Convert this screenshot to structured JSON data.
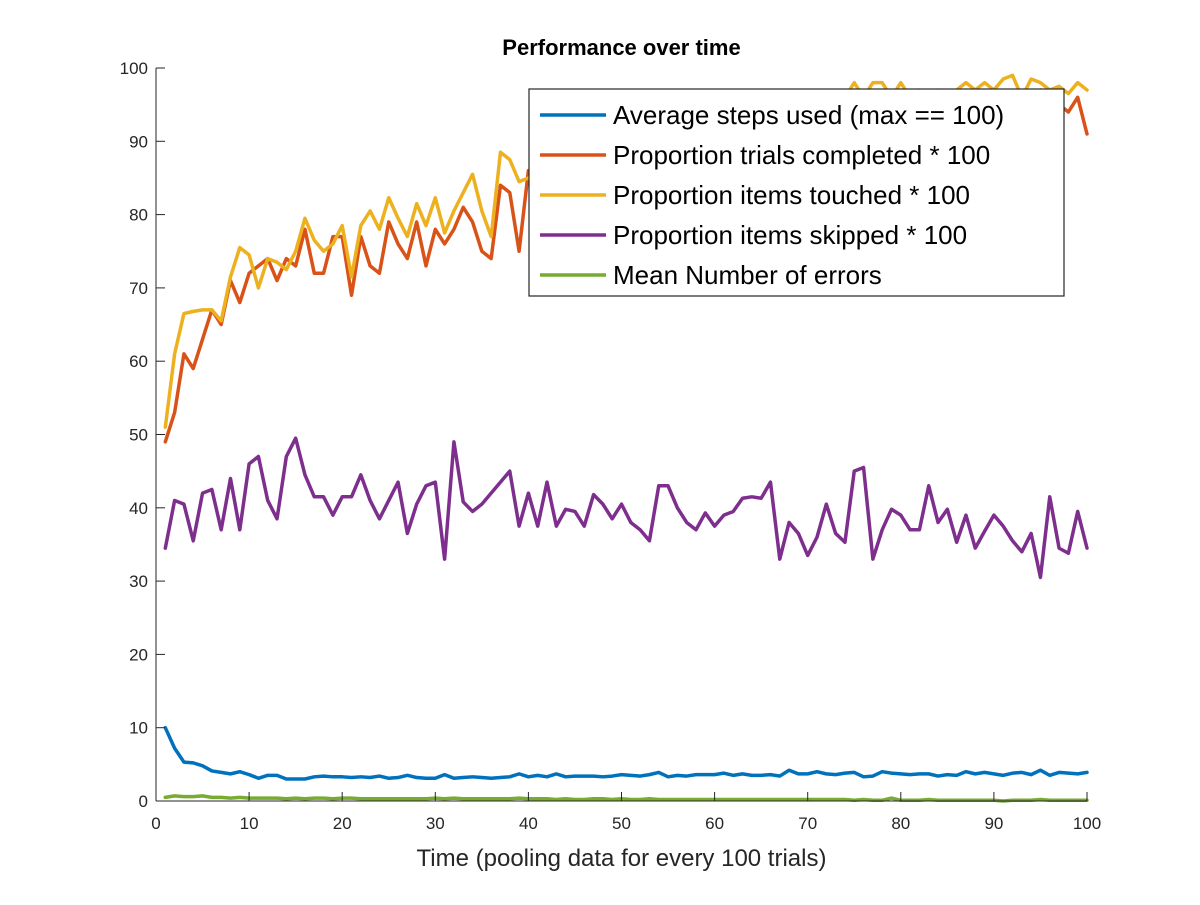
{
  "chart_data": {
    "type": "line",
    "title": "Performance over time",
    "xlabel": "Time (pooling data for every 100 trials)",
    "ylabel": "",
    "xlim": [
      0,
      100
    ],
    "ylim": [
      0,
      100
    ],
    "xticks": [
      0,
      10,
      20,
      30,
      40,
      50,
      60,
      70,
      80,
      90,
      100
    ],
    "yticks": [
      0,
      10,
      20,
      30,
      40,
      50,
      60,
      70,
      80,
      90,
      100
    ],
    "grid": false,
    "legend_location": "top-right",
    "x": [
      1,
      2,
      3,
      4,
      5,
      6,
      7,
      8,
      9,
      10,
      11,
      12,
      13,
      14,
      15,
      16,
      17,
      18,
      19,
      20,
      21,
      22,
      23,
      24,
      25,
      26,
      27,
      28,
      29,
      30,
      31,
      32,
      33,
      34,
      35,
      36,
      37,
      38,
      39,
      40,
      41,
      42,
      43,
      44,
      45,
      46,
      47,
      48,
      49,
      50,
      51,
      52,
      53,
      54,
      55,
      56,
      57,
      58,
      59,
      60,
      61,
      62,
      63,
      64,
      65,
      66,
      67,
      68,
      69,
      70,
      71,
      72,
      73,
      74,
      75,
      76,
      77,
      78,
      79,
      80,
      81,
      82,
      83,
      84,
      85,
      86,
      87,
      88,
      89,
      90,
      91,
      92,
      93,
      94,
      95,
      96,
      97,
      98,
      99,
      100
    ],
    "series": [
      {
        "name": "Average steps used (max == 100)",
        "color": "#0072BD",
        "values": [
          10,
          7.2,
          5.3,
          5.2,
          4.8,
          4.1,
          3.9,
          3.7,
          4.0,
          3.6,
          3.1,
          3.5,
          3.5,
          3.0,
          3.0,
          3.0,
          3.3,
          3.4,
          3.3,
          3.3,
          3.2,
          3.3,
          3.2,
          3.4,
          3.1,
          3.2,
          3.5,
          3.2,
          3.1,
          3.1,
          3.6,
          3.1,
          3.2,
          3.3,
          3.2,
          3.1,
          3.2,
          3.3,
          3.7,
          3.3,
          3.5,
          3.3,
          3.7,
          3.3,
          3.4,
          3.4,
          3.4,
          3.3,
          3.4,
          3.6,
          3.5,
          3.4,
          3.6,
          3.9,
          3.3,
          3.5,
          3.4,
          3.6,
          3.6,
          3.6,
          3.8,
          3.5,
          3.7,
          3.5,
          3.5,
          3.6,
          3.4,
          4.2,
          3.7,
          3.7,
          4.0,
          3.7,
          3.6,
          3.8,
          3.9,
          3.3,
          3.4,
          4.0,
          3.8,
          3.7,
          3.6,
          3.7,
          3.7,
          3.4,
          3.6,
          3.5,
          4.0,
          3.7,
          3.9,
          3.7,
          3.5,
          3.8,
          3.9,
          3.6,
          4.2,
          3.5,
          3.9,
          3.8,
          3.7,
          3.9
        ]
      },
      {
        "name": "Proportion trials completed * 100",
        "color": "#D95319",
        "values": [
          49,
          53,
          61,
          59,
          63,
          67,
          65,
          71,
          68,
          72,
          73,
          74,
          71,
          74,
          73,
          78,
          72,
          72,
          77,
          77,
          69,
          77,
          73,
          72,
          79,
          76,
          74,
          79,
          73,
          78,
          76,
          78,
          81,
          79,
          75,
          74,
          84,
          83,
          75,
          86,
          85,
          86,
          85,
          87,
          85,
          86,
          86,
          87,
          88,
          88,
          88,
          87,
          89,
          90,
          91,
          90,
          89,
          89,
          90,
          91,
          91,
          90,
          91,
          92,
          92,
          91,
          92,
          92,
          93,
          92,
          92,
          93,
          93,
          94,
          94,
          93,
          95,
          94,
          95,
          95,
          95,
          94,
          96,
          95,
          96,
          96,
          95,
          96,
          96,
          96,
          96,
          96,
          95,
          96,
          97,
          95,
          95,
          94,
          96,
          91
        ]
      },
      {
        "name": "Proportion items touched * 100",
        "color": "#EDB120",
        "values": [
          51,
          61,
          66.5,
          66.8,
          67,
          67,
          65.5,
          71.5,
          75.5,
          74.5,
          70,
          74,
          73.5,
          72.5,
          75,
          79.5,
          76.5,
          75,
          76,
          78.5,
          71.5,
          78.5,
          80.5,
          78,
          82.3,
          79.5,
          77,
          81.5,
          78.5,
          82.3,
          77.5,
          80.5,
          83,
          85.5,
          80.5,
          77,
          88.5,
          87.5,
          84.5,
          85,
          86,
          86,
          87,
          88,
          87,
          88,
          88,
          89,
          89,
          89,
          89,
          89,
          90,
          91,
          92,
          91,
          90,
          90,
          91,
          92,
          92,
          92,
          92,
          93,
          93,
          93,
          93,
          96,
          96,
          95,
          95,
          95,
          95,
          96,
          98,
          96,
          98,
          98,
          96,
          98,
          96,
          97,
          96,
          97,
          96,
          97,
          98,
          97,
          98,
          97,
          98.5,
          99,
          96,
          98.5,
          98,
          97,
          97.5,
          96.5,
          98,
          97
        ]
      },
      {
        "name": "Proportion items skipped * 100",
        "color": "#7E2F8E",
        "values": [
          34.5,
          41,
          40.5,
          35.5,
          42,
          42.5,
          37,
          44,
          37,
          46,
          47,
          41,
          38.5,
          47,
          49.5,
          44.5,
          41.5,
          41.5,
          39,
          41.5,
          41.5,
          44.5,
          41,
          38.5,
          41,
          43.5,
          36.5,
          40.5,
          43,
          43.5,
          33,
          49,
          40.8,
          39.5,
          40.5,
          42,
          43.5,
          45,
          37.5,
          42,
          37.5,
          43.5,
          37.5,
          39.8,
          39.5,
          37.5,
          41.8,
          40.5,
          38.5,
          40.5,
          38,
          37,
          35.5,
          43,
          43,
          40,
          38,
          37,
          39.3,
          37.5,
          39,
          39.5,
          41.3,
          41.5,
          41.3,
          43.5,
          33,
          38,
          36.5,
          33.5,
          36,
          40.5,
          36.5,
          35.3,
          45,
          45.5,
          33,
          37,
          39.8,
          39,
          37,
          37,
          43,
          38,
          39.8,
          35.3,
          39,
          34.5,
          36.8,
          39,
          37.5,
          35.5,
          34,
          36.5,
          30.5,
          41.5,
          34.5,
          33.8,
          39.5,
          34.5
        ]
      },
      {
        "name": "Mean Number of errors",
        "color": "#77AC30",
        "values": [
          0.5,
          0.7,
          0.6,
          0.6,
          0.7,
          0.5,
          0.5,
          0.4,
          0.5,
          0.4,
          0.4,
          0.4,
          0.4,
          0.3,
          0.4,
          0.3,
          0.4,
          0.4,
          0.3,
          0.4,
          0.4,
          0.3,
          0.3,
          0.3,
          0.3,
          0.3,
          0.3,
          0.3,
          0.3,
          0.4,
          0.3,
          0.4,
          0.3,
          0.3,
          0.3,
          0.3,
          0.3,
          0.3,
          0.4,
          0.3,
          0.3,
          0.3,
          0.2,
          0.3,
          0.2,
          0.2,
          0.3,
          0.3,
          0.2,
          0.3,
          0.2,
          0.2,
          0.3,
          0.2,
          0.2,
          0.2,
          0.2,
          0.2,
          0.2,
          0.2,
          0.2,
          0.2,
          0.2,
          0.2,
          0.2,
          0.2,
          0.2,
          0.2,
          0.2,
          0.2,
          0.2,
          0.2,
          0.2,
          0.2,
          0.1,
          0.2,
          0.1,
          0.1,
          0.4,
          0.1,
          0.1,
          0.1,
          0.2,
          0.1,
          0.1,
          0.1,
          0.1,
          0.1,
          0.1,
          0.1,
          0.0,
          0.1,
          0.1,
          0.1,
          0.2,
          0.1,
          0.1,
          0.1,
          0.1,
          0.1
        ]
      }
    ]
  }
}
